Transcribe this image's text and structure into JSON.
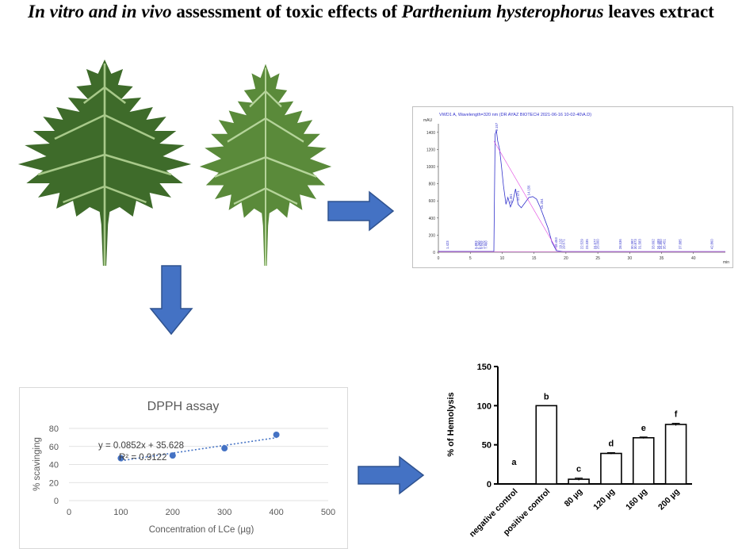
{
  "title": {
    "part1": "In vitro and in vivo",
    "part2": " assessment of toxic effects of ",
    "part3": "Parthenium hysterophorus",
    "part4": " leaves extract"
  },
  "colors": {
    "arrow_fill": "#4472c4",
    "arrow_stroke": "#2f528f",
    "leaf_dark": "#3e6b2a",
    "leaf_light": "#7fa55a",
    "hplc_trace": "#3333cc",
    "hplc_baseline": "#e040e0",
    "dpph_point": "#4472c4"
  },
  "chart_data": [
    {
      "type": "line",
      "title": "VWD1 A, Wavelength=320 nm (DR AYAZ BIOTECH 2021-06-16 10-02-40\\A.D)",
      "ylabel": "mAU",
      "xlabel": "min",
      "xlim": [
        0,
        45
      ],
      "ylim": [
        0,
        1500
      ],
      "xticks": [
        0,
        5,
        10,
        15,
        20,
        25,
        30,
        35,
        40
      ],
      "yticks": [
        0,
        200,
        400,
        600,
        800,
        1000,
        1200,
        1400
      ],
      "x": [
        0,
        8.7,
        8.9,
        9.1,
        9.3,
        9.6,
        9.9,
        10.2,
        10.6,
        10.9,
        11.3,
        11.7,
        12.1,
        12.5,
        13.0,
        13.6,
        14.2,
        14.8,
        15.4,
        16.0,
        16.6,
        17.2,
        17.8,
        18.5,
        19.5,
        45
      ],
      "series": [
        {
          "values": [
            10,
            10,
            1380,
            1420,
            1300,
            1200,
            1000,
            780,
            560,
            640,
            530,
            600,
            740,
            560,
            520,
            580,
            640,
            650,
            620,
            520,
            400,
            280,
            120,
            20,
            8,
            8
          ]
        }
      ],
      "baseline_x": [
        8.7,
        18.6
      ],
      "baseline_y": [
        1300,
        30
      ],
      "peak_labels": [
        {
          "x": 1.423,
          "label": "1.423"
        },
        {
          "x": 5.893,
          "label": "5.893"
        },
        {
          "x": 6.349,
          "label": "6.349"
        },
        {
          "x": 6.625,
          "label": "6.625"
        },
        {
          "x": 7.075,
          "label": "7.075"
        },
        {
          "x": 7.46,
          "label": "7.460"
        },
        {
          "x": 9.157,
          "label": "9.157"
        },
        {
          "x": 11.351,
          "label": "11.351"
        },
        {
          "x": 12.471,
          "label": "12.471"
        },
        {
          "x": 14.156,
          "label": "14.156"
        },
        {
          "x": 16.204,
          "label": "16.204"
        },
        {
          "x": 18.453,
          "label": "18.453"
        },
        {
          "x": 19.132,
          "label": "19.132"
        },
        {
          "x": 19.671,
          "label": "19.671"
        },
        {
          "x": 22.529,
          "label": "22.529"
        },
        {
          "x": 23.335,
          "label": "23.335"
        },
        {
          "x": 24.577,
          "label": "24.577"
        },
        {
          "x": 25.0,
          "label": "25.000"
        },
        {
          "x": 28.536,
          "label": "28.536"
        },
        {
          "x": 30.382,
          "label": "30.382"
        },
        {
          "x": 30.873,
          "label": "30.873"
        },
        {
          "x": 31.583,
          "label": "31.583"
        },
        {
          "x": 33.692,
          "label": "33.692"
        },
        {
          "x": 34.489,
          "label": "34.489"
        },
        {
          "x": 34.86,
          "label": "34.860"
        },
        {
          "x": 35.451,
          "label": "35.451"
        },
        {
          "x": 37.885,
          "label": "37.885"
        },
        {
          "x": 42.86,
          "label": "42.860"
        }
      ]
    },
    {
      "type": "scatter",
      "title": "DPPH assay",
      "xlabel": "Concentration of LCe (µg)",
      "ylabel": "% scavinging",
      "xlim": [
        0,
        500
      ],
      "ylim": [
        0,
        80
      ],
      "xticks": [
        0,
        100,
        200,
        300,
        400,
        500
      ],
      "yticks": [
        0,
        20,
        40,
        60,
        80
      ],
      "x": [
        100,
        200,
        300,
        400
      ],
      "y": [
        47,
        50,
        58,
        73
      ],
      "trendline": {
        "slope": 0.0852,
        "intercept": 35.628
      },
      "equation": "y = 0.0852x + 35.628",
      "r2": "R² = 0.9122",
      "grid": true
    },
    {
      "type": "bar",
      "ylabel": "% of Hemolysis",
      "ylim": [
        0,
        150
      ],
      "yticks": [
        0,
        50,
        100,
        150
      ],
      "categories": [
        "negative control",
        "positive control",
        "80 µg",
        "120 µg",
        "160 µg",
        "200 µg"
      ],
      "values": [
        0,
        100,
        6,
        39,
        59,
        76
      ],
      "errors": [
        0,
        0,
        1.5,
        1,
        1,
        1.5
      ],
      "letters": [
        "a",
        "b",
        "c",
        "d",
        "e",
        "f"
      ]
    }
  ]
}
